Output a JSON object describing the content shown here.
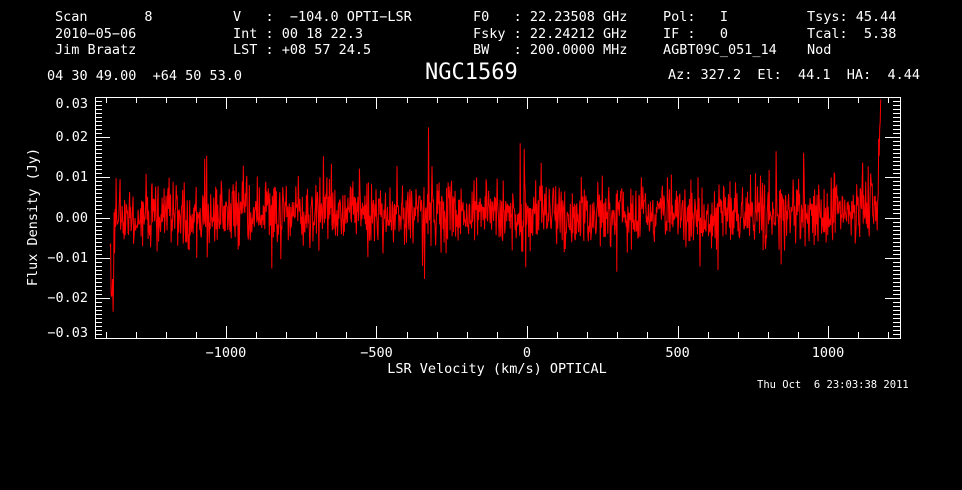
{
  "window": {
    "background": "#000000",
    "text_color": "#ffffff",
    "trace_color": "#ff0000"
  },
  "header": {
    "col1": [
      "Scan       8",
      "2010−05−06",
      "Jim Braatz"
    ],
    "col2": [
      "V   :  −104.0 OPTI−LSR",
      "Int : 00 18 22.3",
      "LST : +08 57 24.5"
    ],
    "col3": [
      "F0   : 22.23508 GHz",
      "Fsky : 22.24212 GHz",
      "BW   : 200.0000 MHz"
    ],
    "col4": [
      "Pol:   I",
      "IF :   0",
      "AGBT09C_051_14"
    ],
    "col5": [
      "Tsys: 45.44",
      "Tcal:  5.38",
      "Nod"
    ]
  },
  "subheader": {
    "coordinates": "04 30 49.00  +64 50 53.0",
    "source_name": "NGC1569",
    "azelha": "Az: 327.2  El:  44.1  HA:  4.44"
  },
  "footer": {
    "timestamp": "Thu Oct  6 23:03:38 2011"
  },
  "chart_data": {
    "type": "line",
    "title": "NGC1569",
    "xlabel": "LSR Velocity (km/s) OPTICAL",
    "ylabel": "Flux Density (Jy)",
    "xlim": [
      -1435,
      1239
    ],
    "ylim": [
      -0.03,
      0.03
    ],
    "grid": false,
    "legend": "none",
    "x_ticks": [
      {
        "value": -1000,
        "label": "−1000"
      },
      {
        "value": -500,
        "label": "−500"
      },
      {
        "value": 0,
        "label": "0"
      },
      {
        "value": 500,
        "label": "500"
      },
      {
        "value": 1000,
        "label": "1000"
      }
    ],
    "x_minor_step": 100,
    "y_ticks": [
      {
        "value": -0.03,
        "label": "−0.03"
      },
      {
        "value": -0.02,
        "label": "−0.02"
      },
      {
        "value": -0.01,
        "label": "−0.01"
      },
      {
        "value": 0,
        "label": "0.00"
      },
      {
        "value": 0.01,
        "label": "0.01"
      },
      {
        "value": 0.02,
        "label": "0.02"
      },
      {
        "value": 0.03,
        "label": "0.03"
      }
    ],
    "y_minor_step": 0.001,
    "series": [
      {
        "name": "spectrum",
        "color": "#ff0000",
        "style": "noise-histogram",
        "x_start": -1385,
        "x_end": 1175,
        "n_points": 1540,
        "baseline_mean": 0.0008,
        "noise_sigma": 0.0042,
        "outlier_prob": 0.03,
        "outlier_scale": 1.9,
        "seed": 42,
        "left_edge_profile": [
          -0.004,
          -0.009,
          -0.0152,
          -0.0205,
          -0.0185,
          -0.0142,
          -0.0105,
          -0.0078,
          -0.0058,
          -0.0042,
          -0.003,
          -0.002,
          -0.0012,
          -0.0006
        ],
        "right_edge_profile": [
          0.0005,
          0.001,
          0.0018,
          0.0028,
          0.004,
          0.0055,
          0.0075,
          0.01,
          0.013,
          0.0165,
          0.0205,
          0.0228
        ],
        "spikes": [
          {
            "v": -1070,
            "a": 0.0146
          },
          {
            "v": -847,
            "a": -0.0127
          },
          {
            "v": -650,
            "a": 0.0134
          },
          {
            "v": -315,
            "a": 0.0128
          },
          {
            "v": -23,
            "a": 0.0185
          },
          {
            "v": -10,
            "a": 0.0171
          },
          {
            "v": 299,
            "a": -0.0135
          },
          {
            "v": 575,
            "a": -0.0122
          },
          {
            "v": 827,
            "a": 0.0165
          },
          {
            "v": 1115,
            "a": 0.0137
          }
        ]
      }
    ]
  }
}
